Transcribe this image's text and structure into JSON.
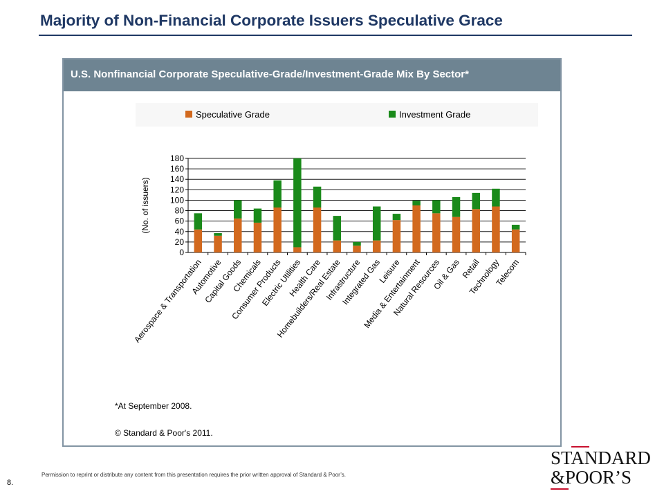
{
  "slide": {
    "title": "Majority of Non-Financial Corporate Issuers Speculative Grace",
    "page_number": "8.",
    "permission_text": "Permission to reprint or distribute any content from this presentation requires the prior written approval of Standard & Poor’s."
  },
  "logo": {
    "line1": "STANDARD",
    "line2": "&POOR’S",
    "accent_color": "#c8102e"
  },
  "colors": {
    "title": "#1f3864",
    "panel_header": "#6e8492",
    "speculative": "#d2691e",
    "investment": "#1a8a1a"
  },
  "footnotes": {
    "date_note": "*At September 2008.",
    "copyright": "© Standard & Poor's 2011."
  },
  "chart_data": {
    "type": "bar",
    "stacked": true,
    "title": "U.S. Nonfinancial Corporate Speculative-Grade/Investment-Grade Mix By Sector*",
    "xlabel": "",
    "ylabel": "(No. of issuers)",
    "ylim": [
      0,
      180
    ],
    "yticks": [
      0,
      20,
      40,
      60,
      80,
      100,
      120,
      140,
      160,
      180
    ],
    "grid": true,
    "legend_position": "top",
    "categories": [
      "Aerospace & Transportation",
      "Automotive",
      "Capital Goods",
      "Chemicals",
      "Consumer Products",
      "Electric Utilities",
      "Health Care",
      "Homebuilders/Real Estate",
      "Infrastructure",
      "Integrated Gas",
      "Leisure",
      "Media & Entertainment",
      "Natural Resources",
      "Oil & Gas",
      "Retail",
      "Technology",
      "Telecom"
    ],
    "series": [
      {
        "name": "Speculative Grade",
        "values": [
          44,
          32,
          65,
          57,
          86,
          10,
          86,
          23,
          13,
          23,
          62,
          90,
          75,
          68,
          83,
          88,
          44
        ]
      },
      {
        "name": "Investment Grade",
        "values": [
          31,
          5,
          35,
          27,
          52,
          170,
          40,
          47,
          7,
          65,
          12,
          9,
          25,
          38,
          31,
          34,
          9
        ]
      }
    ]
  }
}
